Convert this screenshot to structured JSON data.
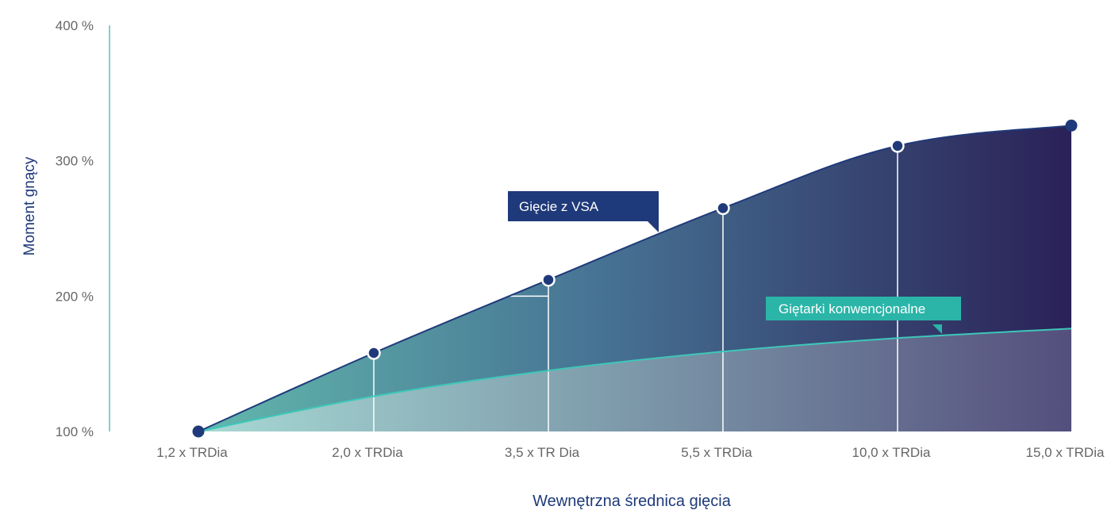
{
  "chart_data": {
    "type": "area",
    "title": "",
    "xlabel": "Wewnętrzna średnica gięcia",
    "ylabel": "Moment gnący",
    "categories": [
      "1,2 x TRDia",
      "2,0 x TRDia",
      "3,5 x TR Dia",
      "5,5 x TRDia",
      "10,0 x TRDia",
      "15,0 x TRDia"
    ],
    "y_ticks": [
      "100 %",
      "200 %",
      "300 %",
      "400 %"
    ],
    "y_tick_values": [
      100,
      200,
      300,
      400
    ],
    "ylim": [
      100,
      400
    ],
    "grid": true,
    "series": [
      {
        "name": "Gięcie z VSA",
        "values": [
          100,
          158,
          212,
          265,
          311,
          326
        ],
        "color": "#1f3a7a"
      },
      {
        "name": "Giętarki konwencjonalne",
        "values": [
          100,
          126,
          145,
          159,
          169,
          176
        ],
        "color": "#2bb5a8"
      }
    ],
    "colors": {
      "vsa_label_bg": "#1f3a7a",
      "conventional_label_bg": "#2bb5a8",
      "axis_title": "#1f3a7a",
      "tick_text": "#666666",
      "marker": "#1f3a7a",
      "gradient_start": "#5bb0a7",
      "gradient_end": "#2b2257"
    }
  }
}
